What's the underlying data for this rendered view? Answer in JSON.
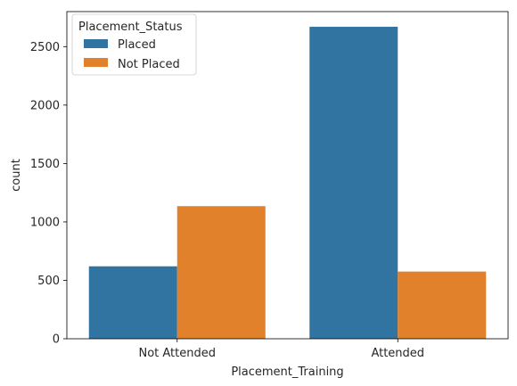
{
  "chart_data": {
    "type": "bar",
    "categories": [
      "Not Attended",
      "Attended"
    ],
    "series": [
      {
        "name": "Placed",
        "values": [
          620,
          2670
        ],
        "color": "#3274a1"
      },
      {
        "name": "Not Placed",
        "values": [
          1135,
          575
        ],
        "color": "#e1812c"
      }
    ],
    "xlabel": "Placement_Training",
    "ylabel": "count",
    "ylim": [
      0,
      2800
    ],
    "yticks": [
      0,
      500,
      1000,
      1500,
      2000,
      2500
    ],
    "grid": false,
    "legend": {
      "title": "Placement_Status",
      "position": "top-left"
    }
  }
}
